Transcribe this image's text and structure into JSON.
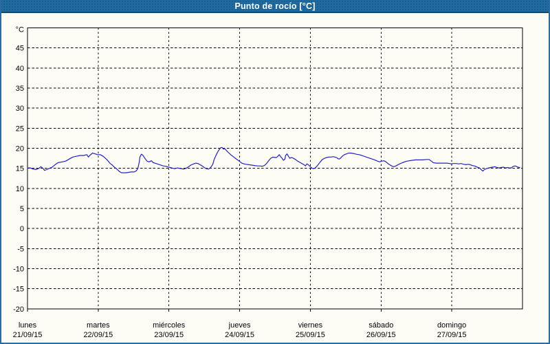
{
  "title": "Punto de rocío [°C]",
  "colors": {
    "titlebar_bg": "#1f6a9e",
    "titlebar_edge": "#1a4565",
    "frame_border": "#2b6d9e",
    "page_bg": "#fdfdf6",
    "title_text": "#ffffff",
    "axis": "#000000",
    "grid": "#000000",
    "line": "#2121c8"
  },
  "chart_data": {
    "type": "line",
    "title": "Punto de rocío [°C]",
    "unit_label": "°C",
    "ylim": [
      -20,
      50
    ],
    "ytick_step": 5,
    "yticks_labeled": [
      45,
      40,
      35,
      30,
      25,
      20,
      15,
      10,
      5,
      0,
      -5,
      -10,
      -15,
      -20
    ],
    "grid": "dashed",
    "legend": "none",
    "x_categories": [
      {
        "day": "lunes",
        "date": "21/09/15"
      },
      {
        "day": "martes",
        "date": "22/09/15"
      },
      {
        "day": "miércoles",
        "date": "23/09/15"
      },
      {
        "day": "jueves",
        "date": "24/09/15"
      },
      {
        "day": "viernes",
        "date": "25/09/15"
      },
      {
        "day": "sábado",
        "date": "26/09/15"
      },
      {
        "day": "domingo",
        "date": "27/09/15"
      }
    ],
    "series": [
      {
        "name": "Punto de rocío [°C]",
        "points": [
          [
            0.0,
            15.1
          ],
          [
            0.04,
            15.1
          ],
          [
            0.08,
            14.8
          ],
          [
            0.12,
            14.7
          ],
          [
            0.16,
            15.0
          ],
          [
            0.19,
            15.4
          ],
          [
            0.22,
            15.0
          ],
          [
            0.24,
            14.5
          ],
          [
            0.27,
            14.7
          ],
          [
            0.31,
            15.0
          ],
          [
            0.35,
            15.3
          ],
          [
            0.39,
            15.9
          ],
          [
            0.43,
            16.4
          ],
          [
            0.49,
            16.6
          ],
          [
            0.54,
            16.8
          ],
          [
            0.59,
            17.3
          ],
          [
            0.64,
            17.8
          ],
          [
            0.69,
            18.0
          ],
          [
            0.74,
            18.2
          ],
          [
            0.79,
            18.2
          ],
          [
            0.84,
            18.4
          ],
          [
            0.86,
            17.8
          ],
          [
            0.88,
            18.2
          ],
          [
            0.92,
            18.8
          ],
          [
            0.96,
            18.6
          ],
          [
            0.99,
            18.4
          ],
          [
            1.03,
            18.4
          ],
          [
            1.07,
            18.0
          ],
          [
            1.12,
            17.2
          ],
          [
            1.15,
            16.6
          ],
          [
            1.17,
            16.2
          ],
          [
            1.2,
            15.8
          ],
          [
            1.22,
            15.4
          ],
          [
            1.25,
            15.0
          ],
          [
            1.27,
            14.7
          ],
          [
            1.3,
            14.2
          ],
          [
            1.33,
            13.9
          ],
          [
            1.36,
            13.9
          ],
          [
            1.39,
            13.9
          ],
          [
            1.43,
            14.0
          ],
          [
            1.47,
            14.1
          ],
          [
            1.51,
            14.1
          ],
          [
            1.54,
            14.4
          ],
          [
            1.56,
            15.0
          ],
          [
            1.58,
            16.5
          ],
          [
            1.59,
            17.8
          ],
          [
            1.61,
            18.5
          ],
          [
            1.63,
            18.3
          ],
          [
            1.66,
            17.5
          ],
          [
            1.69,
            16.8
          ],
          [
            1.72,
            16.6
          ],
          [
            1.75,
            16.9
          ],
          [
            1.78,
            16.4
          ],
          [
            1.82,
            16.2
          ],
          [
            1.87,
            15.9
          ],
          [
            1.92,
            15.6
          ],
          [
            1.96,
            15.5
          ],
          [
            2.0,
            15.3
          ],
          [
            2.04,
            15.1
          ],
          [
            2.08,
            14.9
          ],
          [
            2.12,
            15.1
          ],
          [
            2.15,
            15.0
          ],
          [
            2.18,
            14.9
          ],
          [
            2.21,
            14.8
          ],
          [
            2.24,
            15.0
          ],
          [
            2.27,
            15.3
          ],
          [
            2.31,
            15.8
          ],
          [
            2.35,
            16.1
          ],
          [
            2.38,
            16.3
          ],
          [
            2.41,
            16.2
          ],
          [
            2.44,
            15.9
          ],
          [
            2.47,
            15.6
          ],
          [
            2.5,
            15.2
          ],
          [
            2.53,
            14.9
          ],
          [
            2.56,
            14.8
          ],
          [
            2.59,
            15.2
          ],
          [
            2.62,
            16.0
          ],
          [
            2.64,
            17.2
          ],
          [
            2.67,
            18.4
          ],
          [
            2.7,
            19.4
          ],
          [
            2.73,
            20.1
          ],
          [
            2.75,
            20.2
          ],
          [
            2.77,
            19.8
          ],
          [
            2.79,
            19.9
          ],
          [
            2.82,
            19.3
          ],
          [
            2.85,
            18.8
          ],
          [
            2.88,
            18.3
          ],
          [
            2.91,
            17.9
          ],
          [
            2.94,
            17.5
          ],
          [
            2.97,
            17.1
          ],
          [
            3.0,
            16.7
          ],
          [
            3.03,
            16.3
          ],
          [
            3.06,
            16.1
          ],
          [
            3.09,
            16.0
          ],
          [
            3.13,
            15.9
          ],
          [
            3.17,
            15.8
          ],
          [
            3.21,
            15.7
          ],
          [
            3.25,
            15.6
          ],
          [
            3.29,
            15.6
          ],
          [
            3.32,
            15.5
          ],
          [
            3.35,
            15.7
          ],
          [
            3.38,
            16.2
          ],
          [
            3.41,
            16.9
          ],
          [
            3.44,
            17.5
          ],
          [
            3.47,
            17.8
          ],
          [
            3.5,
            17.7
          ],
          [
            3.52,
            17.7
          ],
          [
            3.54,
            18.0
          ],
          [
            3.56,
            18.4
          ],
          [
            3.58,
            17.9
          ],
          [
            3.6,
            17.5
          ],
          [
            3.62,
            17.0
          ],
          [
            3.64,
            17.3
          ],
          [
            3.65,
            18.2
          ],
          [
            3.67,
            18.6
          ],
          [
            3.69,
            18.0
          ],
          [
            3.71,
            17.5
          ],
          [
            3.73,
            17.7
          ],
          [
            3.75,
            17.6
          ],
          [
            3.77,
            17.4
          ],
          [
            3.79,
            17.2
          ],
          [
            3.82,
            16.8
          ],
          [
            3.85,
            16.5
          ],
          [
            3.88,
            16.2
          ],
          [
            3.91,
            15.9
          ],
          [
            3.93,
            15.6
          ],
          [
            3.95,
            16.1
          ],
          [
            3.97,
            15.9
          ],
          [
            3.99,
            15.6
          ],
          [
            4.01,
            15.2
          ],
          [
            4.03,
            15.0
          ],
          [
            4.04,
            14.9
          ],
          [
            4.06,
            15.0
          ],
          [
            4.08,
            15.3
          ],
          [
            4.11,
            15.9
          ],
          [
            4.14,
            16.6
          ],
          [
            4.17,
            17.2
          ],
          [
            4.2,
            17.5
          ],
          [
            4.23,
            17.7
          ],
          [
            4.26,
            17.8
          ],
          [
            4.29,
            17.8
          ],
          [
            4.32,
            17.9
          ],
          [
            4.35,
            17.8
          ],
          [
            4.38,
            17.6
          ],
          [
            4.39,
            17.4
          ],
          [
            4.41,
            17.3
          ],
          [
            4.43,
            17.6
          ],
          [
            4.45,
            18.0
          ],
          [
            4.48,
            18.4
          ],
          [
            4.51,
            18.6
          ],
          [
            4.54,
            18.8
          ],
          [
            4.57,
            18.8
          ],
          [
            4.61,
            18.7
          ],
          [
            4.65,
            18.5
          ],
          [
            4.69,
            18.4
          ],
          [
            4.73,
            18.2
          ],
          [
            4.76,
            18.0
          ],
          [
            4.81,
            17.7
          ],
          [
            4.86,
            17.4
          ],
          [
            4.91,
            17.1
          ],
          [
            4.95,
            16.8
          ],
          [
            4.98,
            16.6
          ],
          [
            5.01,
            16.8
          ],
          [
            5.04,
            16.9
          ],
          [
            5.07,
            16.6
          ],
          [
            5.09,
            16.3
          ],
          [
            5.12,
            15.9
          ],
          [
            5.15,
            15.6
          ],
          [
            5.18,
            15.4
          ],
          [
            5.21,
            15.6
          ],
          [
            5.25,
            16.0
          ],
          [
            5.3,
            16.4
          ],
          [
            5.35,
            16.7
          ],
          [
            5.4,
            16.9
          ],
          [
            5.44,
            17.0
          ],
          [
            5.49,
            17.1
          ],
          [
            5.54,
            17.1
          ],
          [
            5.59,
            17.1
          ],
          [
            5.64,
            17.2
          ],
          [
            5.68,
            17.2
          ],
          [
            5.71,
            16.8
          ],
          [
            5.74,
            16.4
          ],
          [
            5.78,
            16.3
          ],
          [
            5.81,
            16.3
          ],
          [
            5.85,
            16.3
          ],
          [
            5.89,
            16.3
          ],
          [
            5.93,
            16.3
          ],
          [
            5.97,
            16.2
          ],
          [
            5.99,
            16.1
          ],
          [
            6.02,
            16.2
          ],
          [
            6.06,
            16.2
          ],
          [
            6.1,
            16.1
          ],
          [
            6.13,
            16.2
          ],
          [
            6.17,
            16.0
          ],
          [
            6.2,
            15.9
          ],
          [
            6.23,
            16.0
          ],
          [
            6.26,
            15.9
          ],
          [
            6.29,
            15.7
          ],
          [
            6.32,
            15.6
          ],
          [
            6.36,
            15.3
          ],
          [
            6.39,
            15.1
          ],
          [
            6.42,
            14.6
          ],
          [
            6.44,
            14.3
          ],
          [
            6.46,
            14.7
          ],
          [
            6.49,
            14.9
          ],
          [
            6.52,
            15.1
          ],
          [
            6.55,
            15.2
          ],
          [
            6.58,
            15.3
          ],
          [
            6.61,
            15.4
          ],
          [
            6.64,
            15.2
          ],
          [
            6.67,
            15.1
          ],
          [
            6.7,
            15.2
          ],
          [
            6.73,
            15.3
          ],
          [
            6.76,
            15.1
          ],
          [
            6.79,
            15.2
          ],
          [
            6.81,
            15.1
          ],
          [
            6.84,
            15.1
          ],
          [
            6.87,
            15.5
          ],
          [
            6.9,
            15.6
          ],
          [
            6.93,
            15.3
          ],
          [
            6.96,
            15.2
          ]
        ]
      }
    ]
  }
}
